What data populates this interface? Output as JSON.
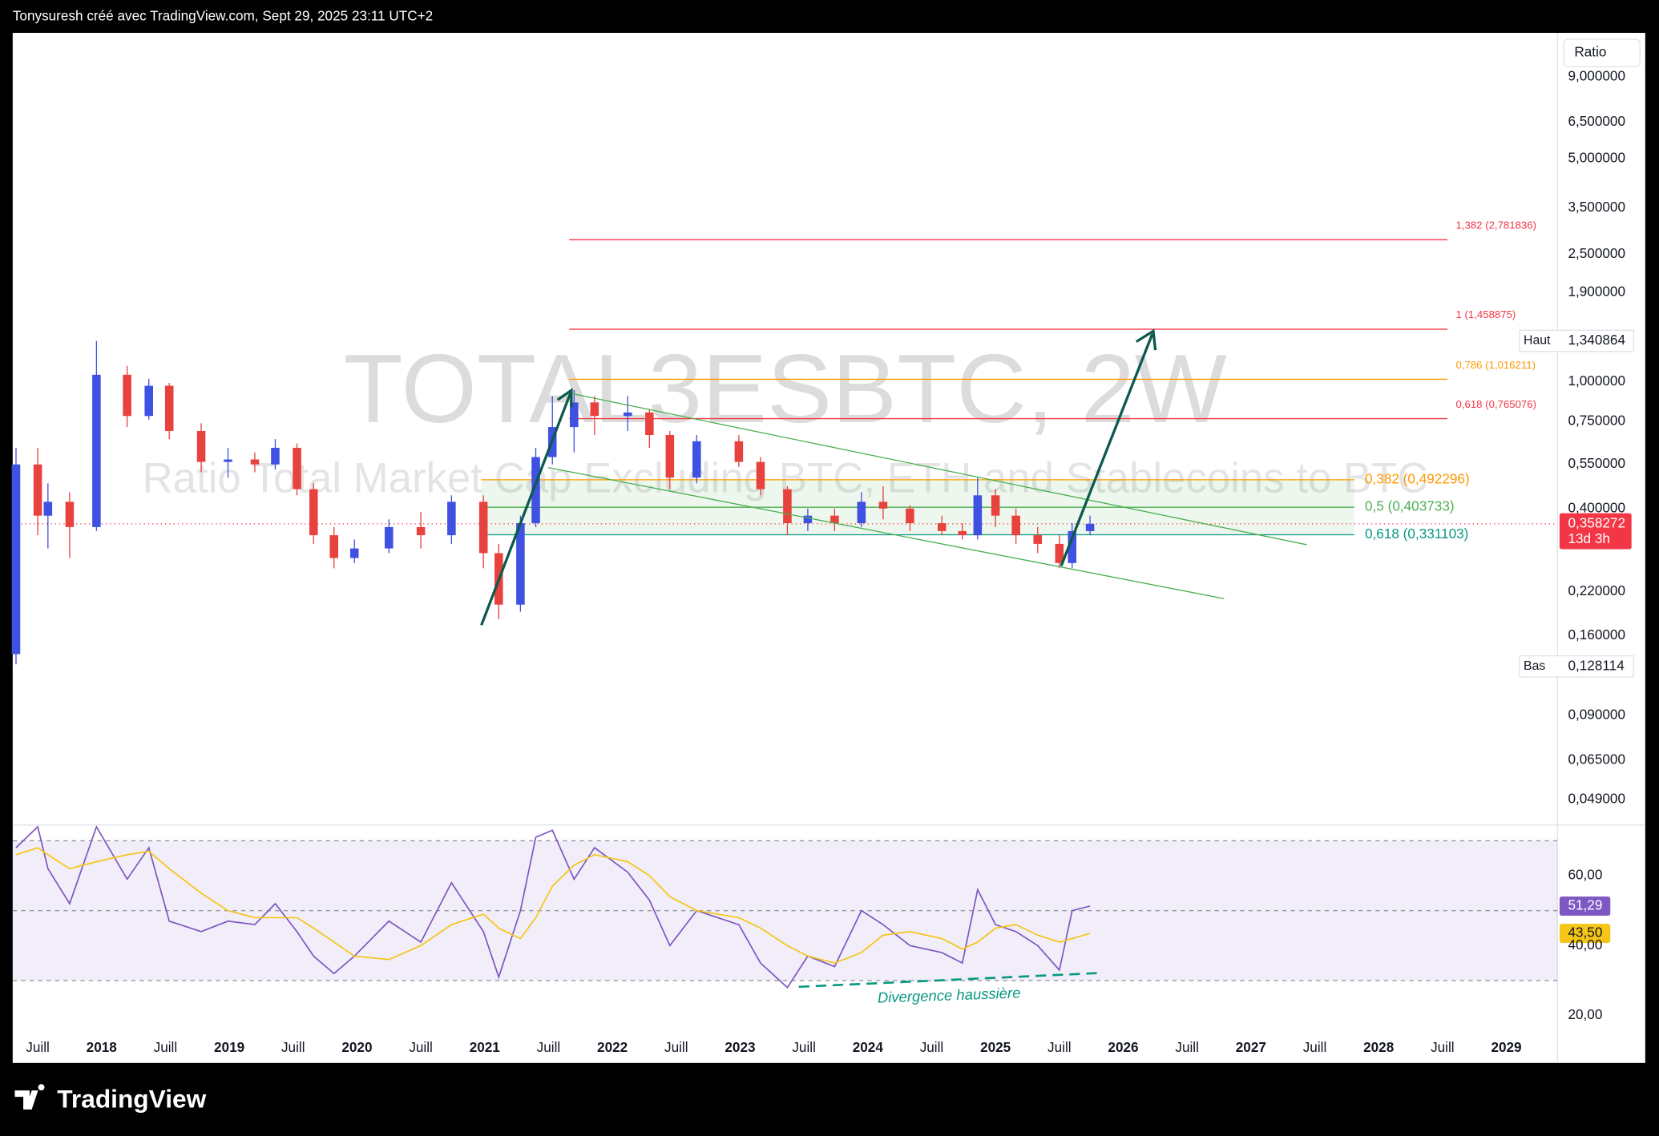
{
  "header": "Tonysuresh créé avec TradingView.com, Sept 29, 2025 23:11 UTC+2",
  "logo": "TradingView",
  "chart_data": [
    {
      "type": "candlestick",
      "title": "TOTAL3ESBTC, 2W",
      "subtitle": "Ratio Total Market Cap Excluding BTC, ETH and Stablecoins to BTC",
      "scale_label": "Ratio",
      "log_scale": true,
      "up_color": "#3f51e0",
      "down_color": "#e8423f",
      "x": [
        2017.33,
        2017.5,
        2017.58,
        2017.75,
        2017.96,
        2018.2,
        2018.37,
        2018.53,
        2018.78,
        2018.99,
        2019.2,
        2019.36,
        2019.53,
        2019.66,
        2019.82,
        2019.98,
        2020.25,
        2020.5,
        2020.74,
        2020.99,
        2021.11,
        2021.28,
        2021.4,
        2021.53,
        2021.7,
        2021.86,
        2022.12,
        2022.29,
        2022.45,
        2022.66,
        2022.99,
        2023.16,
        2023.37,
        2023.53,
        2023.74,
        2023.95,
        2024.12,
        2024.33,
        2024.58,
        2024.74,
        2024.86,
        2025.0,
        2025.16,
        2025.33,
        2025.5,
        2025.6,
        2025.74
      ],
      "open": [
        0.14,
        0.55,
        0.38,
        0.42,
        0.35,
        1.05,
        0.78,
        0.97,
        0.7,
        0.56,
        0.57,
        0.55,
        0.62,
        0.46,
        0.33,
        0.28,
        0.3,
        0.35,
        0.33,
        0.42,
        0.29,
        0.2,
        0.36,
        0.58,
        0.72,
        0.86,
        0.78,
        0.8,
        0.68,
        0.5,
        0.65,
        0.56,
        0.46,
        0.36,
        0.38,
        0.36,
        0.42,
        0.4,
        0.36,
        0.34,
        0.33,
        0.44,
        0.38,
        0.33,
        0.31,
        0.27,
        0.34
      ],
      "high": [
        0.62,
        0.62,
        0.48,
        0.45,
        1.34,
        1.12,
        1.02,
        0.99,
        0.74,
        0.62,
        0.6,
        0.66,
        0.64,
        0.48,
        0.35,
        0.32,
        0.37,
        0.39,
        0.44,
        0.44,
        0.31,
        0.38,
        0.62,
        0.9,
        0.94,
        0.9,
        0.9,
        0.82,
        0.7,
        0.68,
        0.68,
        0.58,
        0.47,
        0.4,
        0.4,
        0.45,
        0.47,
        0.41,
        0.38,
        0.36,
        0.5,
        0.46,
        0.4,
        0.35,
        0.33,
        0.36,
        0.38
      ],
      "low": [
        0.13,
        0.33,
        0.3,
        0.28,
        0.34,
        0.72,
        0.76,
        0.66,
        0.52,
        0.5,
        0.52,
        0.53,
        0.44,
        0.31,
        0.26,
        0.27,
        0.29,
        0.3,
        0.31,
        0.26,
        0.18,
        0.19,
        0.35,
        0.55,
        0.6,
        0.68,
        0.7,
        0.62,
        0.46,
        0.48,
        0.54,
        0.44,
        0.33,
        0.34,
        0.34,
        0.35,
        0.37,
        0.34,
        0.33,
        0.32,
        0.32,
        0.35,
        0.31,
        0.29,
        0.26,
        0.26,
        0.33
      ],
      "close": [
        0.55,
        0.38,
        0.42,
        0.35,
        1.05,
        0.78,
        0.97,
        0.7,
        0.56,
        0.57,
        0.55,
        0.62,
        0.46,
        0.33,
        0.28,
        0.3,
        0.35,
        0.33,
        0.42,
        0.29,
        0.2,
        0.36,
        0.58,
        0.72,
        0.86,
        0.78,
        0.8,
        0.68,
        0.5,
        0.65,
        0.56,
        0.46,
        0.36,
        0.38,
        0.36,
        0.42,
        0.4,
        0.36,
        0.34,
        0.33,
        0.44,
        0.38,
        0.33,
        0.31,
        0.27,
        0.34,
        0.358272
      ],
      "xlim": [
        2017.304,
        2029.4
      ],
      "xticks": [
        {
          "value": 2017.5,
          "label": "Juill"
        },
        2018,
        {
          "value": 2018.5,
          "label": "Juill"
        },
        2019,
        {
          "value": 2019.5,
          "label": "Juill"
        },
        2020,
        {
          "value": 2020.5,
          "label": "Juill"
        },
        2021,
        {
          "value": 2021.5,
          "label": "Juill"
        },
        2022,
        {
          "value": 2022.5,
          "label": "Juill"
        },
        2023,
        {
          "value": 2023.5,
          "label": "Juill"
        },
        2024,
        {
          "value": 2024.5,
          "label": "Juill"
        },
        2025,
        {
          "value": 2025.5,
          "label": "Juill"
        },
        2026,
        {
          "value": 2026.5,
          "label": "Juill"
        },
        2027,
        {
          "value": 2027.5,
          "label": "Juill"
        },
        2028,
        {
          "value": 2028.5,
          "label": "Juill"
        },
        2029
      ],
      "ylim": [
        0.0408,
        12.0
      ],
      "yticks": [
        {
          "value": 9,
          "label": "9,000000"
        },
        {
          "value": 6.5,
          "label": "6,500000"
        },
        {
          "value": 5,
          "label": "5,000000"
        },
        {
          "value": 3.5,
          "label": "3,500000"
        },
        {
          "value": 2.5,
          "label": "2,500000"
        },
        {
          "value": 1.9,
          "label": "1,900000"
        },
        {
          "value": 1,
          "label": "1,000000"
        },
        {
          "value": 0.75,
          "label": "0,750000"
        },
        {
          "value": 0.55,
          "label": "0,550000"
        },
        {
          "value": 0.4,
          "label": "0,400000"
        },
        {
          "value": 0.22,
          "label": "0,220000"
        },
        {
          "value": 0.16,
          "label": "0,160000"
        },
        {
          "value": 0.09,
          "label": "0,090000"
        },
        {
          "value": 0.065,
          "label": "0,065000"
        },
        {
          "value": 0.049,
          "label": "0,049000"
        }
      ],
      "high_marker": {
        "name": "Haut",
        "value": 1.340864,
        "label": "1,340864"
      },
      "low_marker": {
        "name": "Bas",
        "value": 0.128114,
        "label": "0,128114"
      },
      "last_price": {
        "value": 0.358272,
        "label": "0,358272",
        "countdown": "13d 3h",
        "color": "#f23645"
      },
      "fib_retracements": [
        {
          "levels": [
            {
              "value": 2.781836,
              "label": "1,382 (2,781836)",
              "color": "#f23645"
            },
            {
              "value": 1.458875,
              "label": "1 (1,458875)",
              "color": "#f23645"
            },
            {
              "value": 1.016211,
              "label": "0,786 (1,016211)",
              "color": "#ff9800"
            },
            {
              "value": 0.765076,
              "label": "0,618 (0,765076)",
              "color": "#f23645"
            }
          ]
        },
        {
          "levels": [
            {
              "value": 0.492296,
              "label": "0,382 (0,492296)",
              "color": "#ff9800"
            },
            {
              "value": 0.403733,
              "label": "0,5 (0,403733)",
              "color": "#4caf50"
            },
            {
              "value": 0.331103,
              "label": "0,618 (0,331103)",
              "color": "#089981"
            }
          ]
        }
      ]
    },
    {
      "type": "line",
      "annotation": "Divergence haussière",
      "x": [
        2017.33,
        2017.5,
        2017.58,
        2017.75,
        2017.96,
        2018.2,
        2018.37,
        2018.53,
        2018.78,
        2018.99,
        2019.2,
        2019.36,
        2019.53,
        2019.66,
        2019.82,
        2019.98,
        2020.25,
        2020.5,
        2020.74,
        2020.99,
        2021.11,
        2021.28,
        2021.4,
        2021.53,
        2021.7,
        2021.86,
        2022.12,
        2022.29,
        2022.45,
        2022.66,
        2022.99,
        2023.16,
        2023.37,
        2023.53,
        2023.74,
        2023.95,
        2024.12,
        2024.33,
        2024.58,
        2024.74,
        2024.86,
        2025.0,
        2025.16,
        2025.33,
        2025.5,
        2025.6,
        2025.74
      ],
      "series": [
        {
          "color": "#7e57c2",
          "values": [
            68,
            74,
            62,
            52,
            74,
            59,
            68,
            47,
            44,
            47,
            46,
            52,
            44,
            37,
            32,
            37,
            47,
            41,
            58,
            44,
            31,
            50,
            71,
            73,
            59,
            68,
            61,
            53,
            40,
            50,
            46,
            35,
            28,
            37,
            34,
            50,
            46,
            40,
            38,
            35,
            56,
            46,
            44,
            40,
            33,
            50,
            51.29
          ],
          "last_label": "51,29"
        },
        {
          "color": "#f5c518",
          "values": [
            66,
            68,
            66,
            62,
            64,
            66,
            67,
            62,
            55,
            50,
            48,
            48,
            48,
            45,
            41,
            37,
            36,
            40,
            46,
            49,
            45,
            42,
            48,
            57,
            63,
            66,
            64,
            60,
            54,
            50,
            48,
            45,
            40,
            37,
            35,
            38,
            43,
            44,
            42,
            39,
            41,
            45,
            46,
            43,
            41,
            42,
            43.5
          ],
          "last_label": "43,50"
        }
      ],
      "bands": [
        70,
        50,
        30
      ],
      "ylim": [
        15.5,
        74.5
      ],
      "yticks": [
        {
          "value": 60,
          "label": "60,00"
        },
        {
          "value": 40,
          "label": "40,00"
        },
        {
          "value": 20,
          "label": "20,00"
        }
      ]
    }
  ]
}
